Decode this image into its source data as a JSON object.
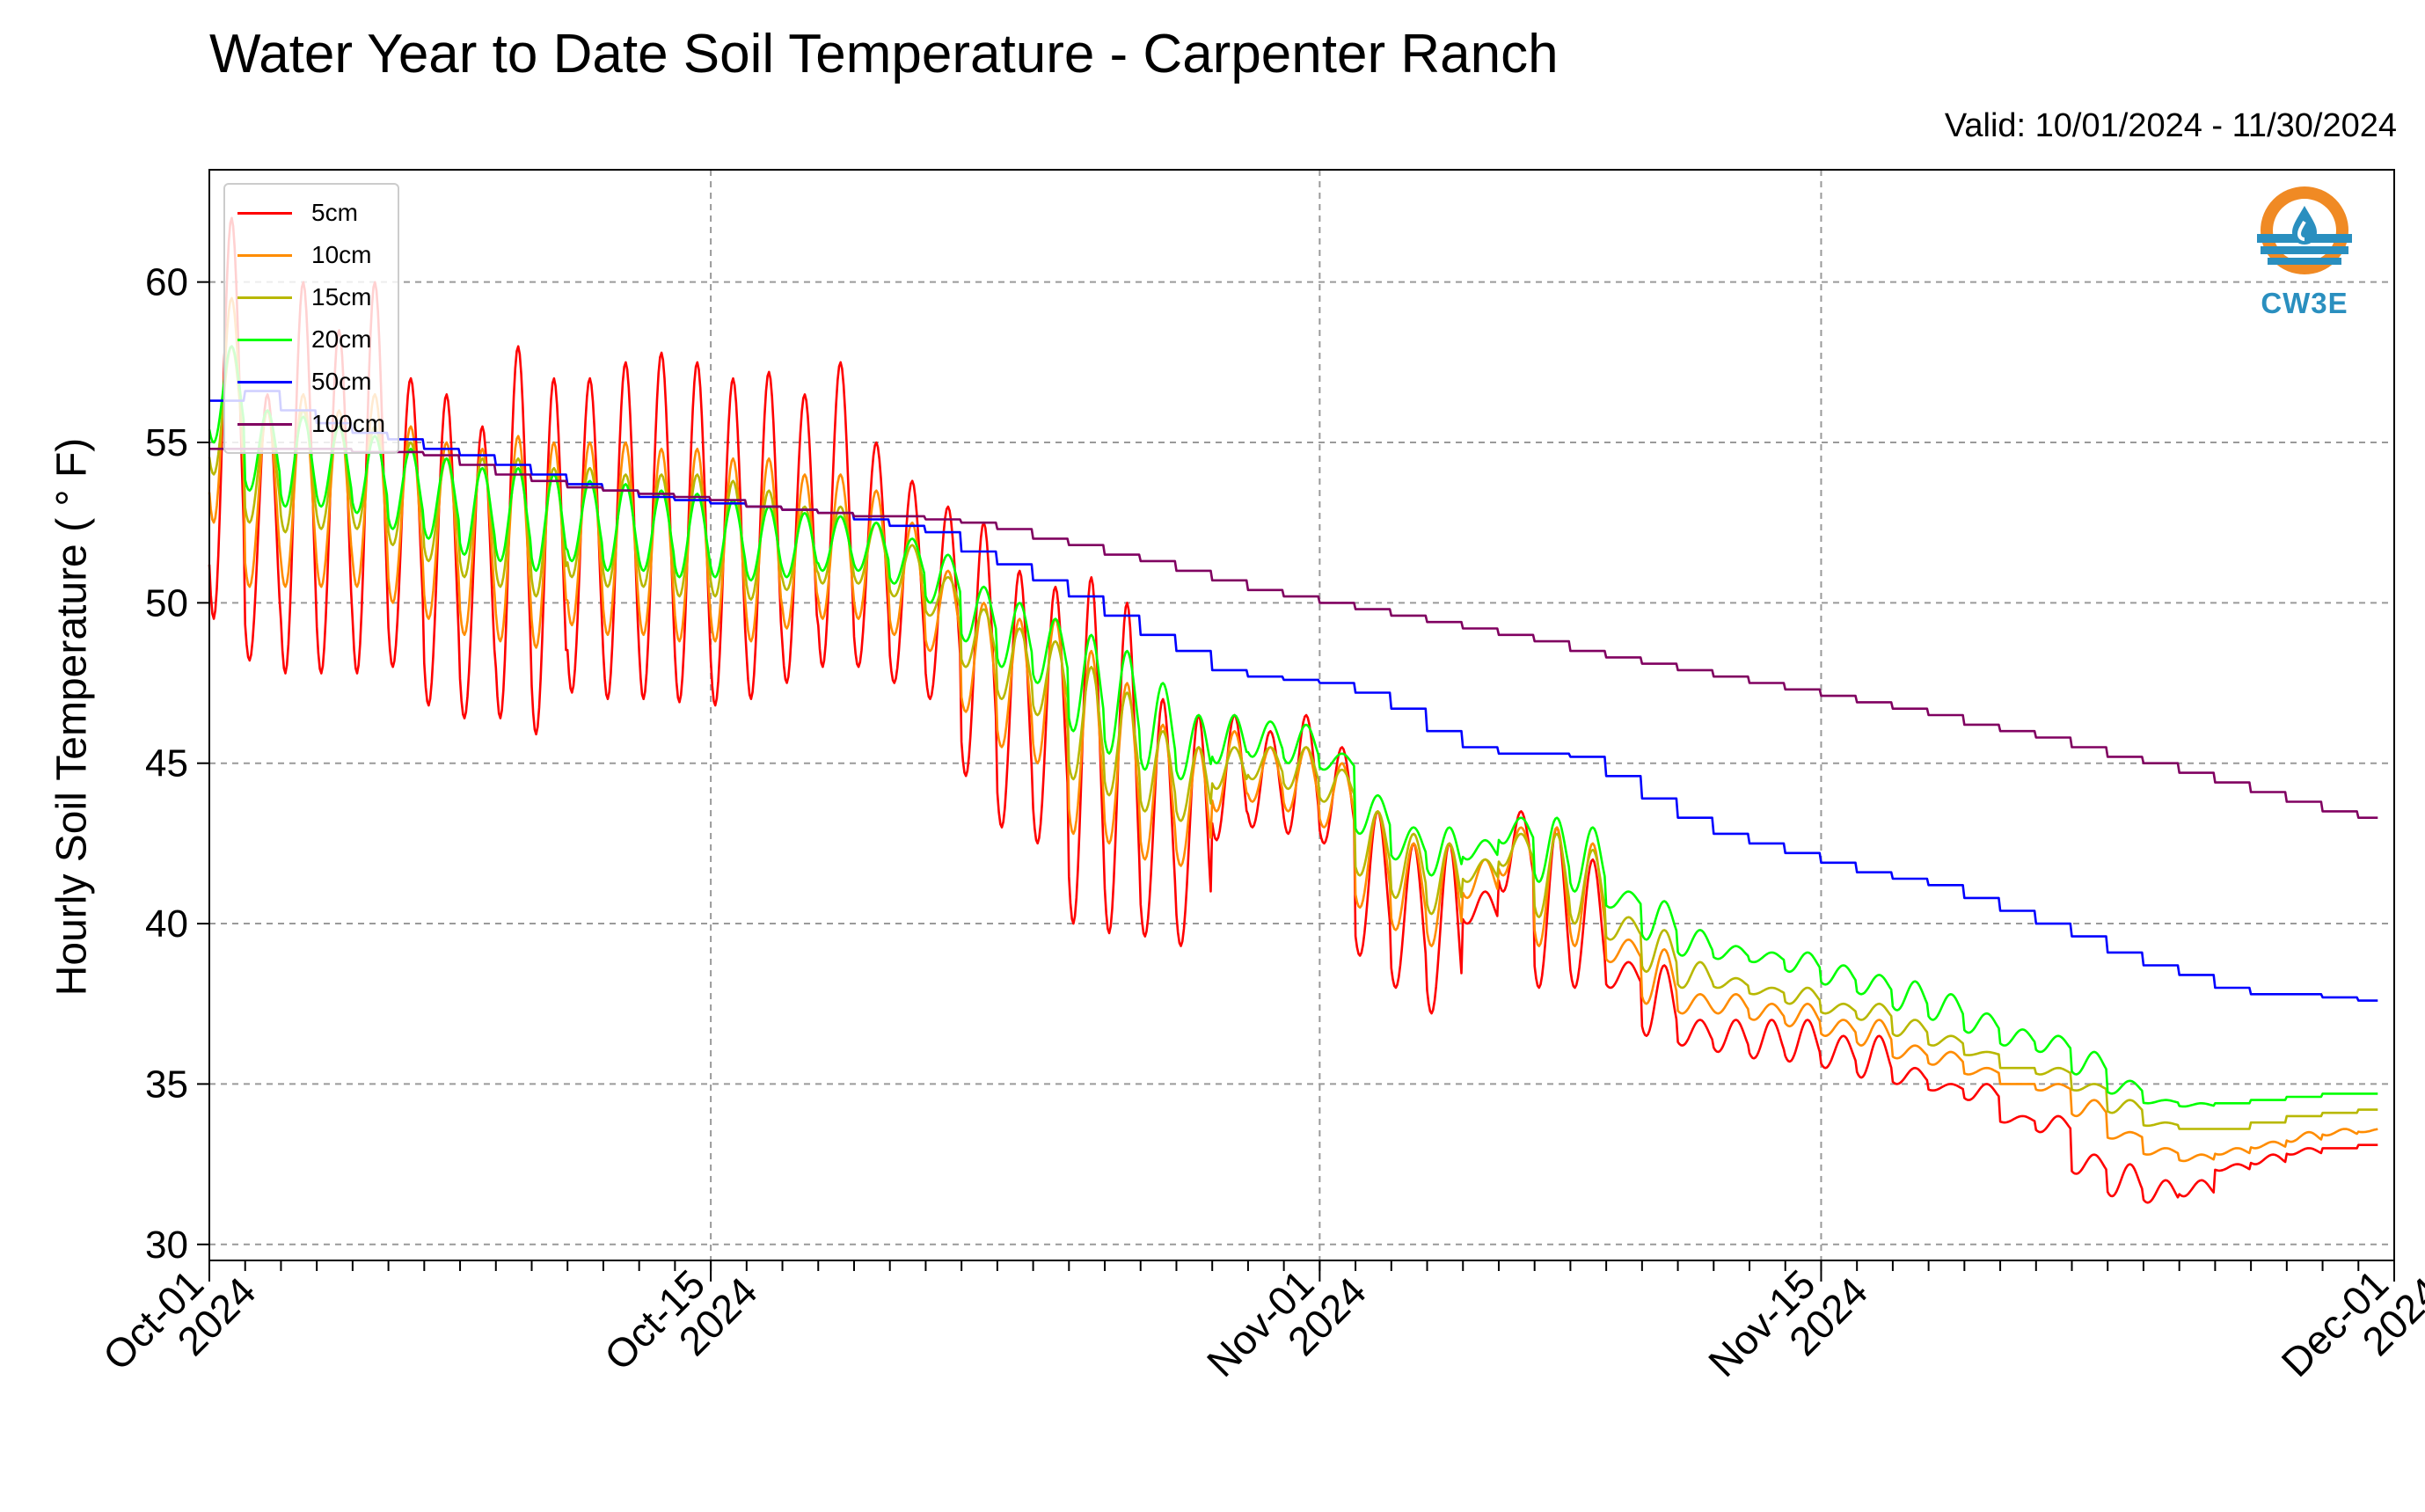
{
  "title": "Water Year to Date Soil Temperature - Carpenter Ranch",
  "subtitle": "Valid: 10/01/2024 - 11/30/2024",
  "logo_text": "CW3E",
  "chart_data": {
    "type": "line",
    "title": "Water Year to Date Soil Temperature - Carpenter Ranch",
    "ylabel": "Hourly Soil Temperature ( ° F)",
    "xlabel": "",
    "xlim": [
      "2024-10-01",
      "2024-12-01"
    ],
    "ylim": [
      29.5,
      63.5
    ],
    "yticks": [
      30,
      35,
      40,
      45,
      50,
      55,
      60
    ],
    "xticks": [
      {
        "date": "2024-10-01",
        "label1": "Oct-01",
        "label2": "2024"
      },
      {
        "date": "2024-10-15",
        "label1": "Oct-15",
        "label2": "2024"
      },
      {
        "date": "2024-11-01",
        "label1": "Nov-01",
        "label2": "2024"
      },
      {
        "date": "2024-11-15",
        "label1": "Nov-15",
        "label2": "2024"
      },
      {
        "date": "2024-12-01",
        "label1": "Dec-01",
        "label2": "2024"
      }
    ],
    "grid": true,
    "legend": "top-left",
    "series": [
      {
        "name": "5cm",
        "color": "#ff0000",
        "daily_max": [
          62.0,
          56.5,
          60.0,
          58.5,
          60.0,
          57.0,
          56.5,
          55.5,
          58.0,
          57.0,
          57.0,
          57.5,
          57.8,
          57.5,
          57.0,
          57.2,
          56.5,
          57.5,
          55.0,
          53.8,
          53.0,
          52.5,
          51.0,
          50.5,
          50.8,
          50.0,
          47.0,
          46.5,
          46.5,
          46.0,
          46.5,
          45.5,
          43.5,
          42.5,
          42.5,
          41.0,
          43.5,
          43.0,
          42.0,
          38.8,
          38.7,
          37.0,
          37.0,
          37.0,
          37.0,
          36.5,
          36.5,
          35.5,
          35.0,
          35.0,
          34.0,
          34.0,
          32.8,
          32.5,
          32.0,
          32.0,
          32.5,
          32.8,
          33.0,
          33.0,
          33.1
        ],
        "daily_min": [
          49.5,
          48.2,
          47.8,
          47.8,
          47.8,
          48.0,
          46.8,
          46.4,
          46.4,
          45.9,
          47.2,
          47.0,
          47.0,
          46.9,
          46.8,
          47.0,
          47.5,
          48.0,
          48.0,
          47.5,
          47.0,
          44.6,
          43.0,
          42.5,
          40.0,
          39.7,
          39.6,
          39.3,
          42.6,
          43.0,
          42.8,
          42.5,
          39.0,
          38.0,
          37.2,
          40.0,
          41.0,
          38.0,
          38.0,
          38.0,
          36.5,
          36.2,
          36.0,
          35.8,
          35.7,
          35.5,
          35.2,
          35.0,
          34.8,
          34.5,
          33.8,
          33.5,
          32.2,
          31.5,
          31.3,
          31.5,
          32.3,
          32.5,
          32.8,
          33.0,
          33.1
        ]
      },
      {
        "name": "10cm",
        "color": "#ff8c00",
        "daily_max": [
          59.5,
          56.0,
          56.5,
          56.0,
          56.5,
          55.5,
          55.0,
          54.8,
          55.2,
          55.0,
          55.0,
          55.0,
          54.8,
          54.8,
          54.5,
          54.5,
          54.0,
          54.0,
          53.5,
          52.5,
          51.0,
          50.0,
          49.5,
          49.5,
          48.5,
          47.5,
          46.2,
          45.5,
          46.0,
          45.5,
          45.5,
          45.0,
          43.5,
          42.5,
          42.5,
          42.0,
          43.0,
          43.0,
          42.5,
          39.5,
          39.2,
          37.8,
          37.8,
          37.5,
          37.5,
          37.0,
          37.0,
          36.2,
          36.0,
          35.5,
          35.0,
          35.0,
          34.5,
          33.5,
          33.0,
          32.8,
          33.0,
          33.2,
          33.5,
          33.6,
          33.6
        ],
        "daily_min": [
          52.5,
          50.5,
          50.5,
          50.5,
          50.5,
          50.0,
          49.5,
          49.0,
          48.8,
          48.6,
          49.3,
          49.0,
          49.0,
          48.8,
          48.8,
          48.8,
          49.2,
          49.5,
          49.5,
          49.0,
          48.5,
          46.6,
          45.5,
          45.0,
          42.8,
          42.5,
          42.0,
          41.8,
          43.5,
          43.8,
          43.5,
          43.0,
          40.5,
          39.8,
          39.3,
          40.8,
          41.5,
          39.3,
          39.3,
          38.8,
          37.5,
          37.2,
          37.2,
          37.0,
          36.8,
          36.5,
          36.2,
          35.8,
          35.6,
          35.3,
          35.0,
          34.8,
          34.0,
          33.3,
          32.8,
          32.6,
          32.8,
          33.0,
          33.2,
          33.4,
          33.5
        ]
      },
      {
        "name": "15cm",
        "color": "#b8b800",
        "daily_max": [
          58.0,
          56.0,
          56.0,
          55.5,
          55.5,
          55.0,
          54.5,
          54.5,
          54.5,
          54.2,
          54.2,
          54.0,
          54.0,
          54.0,
          53.8,
          53.5,
          53.0,
          53.0,
          52.5,
          51.8,
          50.8,
          49.8,
          49.2,
          48.8,
          48.0,
          47.2,
          46.0,
          45.5,
          45.5,
          45.5,
          45.5,
          44.8,
          43.5,
          42.8,
          42.5,
          42.0,
          42.8,
          42.8,
          42.3,
          40.2,
          39.8,
          38.8,
          38.3,
          38.0,
          38.0,
          37.5,
          37.5,
          37.0,
          36.5,
          36.0,
          35.5,
          35.5,
          35.0,
          34.5,
          33.8,
          33.6,
          33.6,
          33.8,
          34.0,
          34.1,
          34.2
        ],
        "daily_min": [
          54.0,
          52.5,
          52.2,
          52.3,
          52.3,
          51.8,
          51.3,
          50.8,
          50.5,
          50.2,
          50.8,
          50.5,
          50.5,
          50.2,
          50.2,
          50.1,
          50.4,
          50.6,
          50.6,
          50.2,
          49.6,
          48.0,
          47.0,
          46.5,
          44.5,
          44.0,
          43.5,
          43.2,
          44.2,
          44.5,
          44.2,
          43.8,
          41.5,
          40.8,
          40.3,
          41.3,
          41.8,
          40.2,
          40.0,
          39.5,
          38.5,
          38.0,
          38.0,
          37.8,
          37.5,
          37.2,
          37.0,
          36.5,
          36.2,
          35.9,
          35.5,
          35.3,
          34.8,
          34.1,
          33.7,
          33.6,
          33.6,
          33.8,
          34.0,
          34.1,
          34.2
        ]
      },
      {
        "name": "20cm",
        "color": "#00ff00",
        "daily_max": [
          58.0,
          56.0,
          55.8,
          55.5,
          55.2,
          54.8,
          54.5,
          54.2,
          54.2,
          54.0,
          53.8,
          53.7,
          53.5,
          53.4,
          53.2,
          53.0,
          52.8,
          52.7,
          52.5,
          52.0,
          51.5,
          50.5,
          50.0,
          49.5,
          49.0,
          48.5,
          47.5,
          46.5,
          46.5,
          46.3,
          46.2,
          45.3,
          44.0,
          43.0,
          43.0,
          42.6,
          43.3,
          43.3,
          43.0,
          41.0,
          40.7,
          39.8,
          39.3,
          39.1,
          39.1,
          38.7,
          38.4,
          38.2,
          37.8,
          37.2,
          36.7,
          36.5,
          36.0,
          35.1,
          34.5,
          34.4,
          34.4,
          34.5,
          34.6,
          34.7,
          34.7
        ],
        "daily_min": [
          55.0,
          53.5,
          53.0,
          53.0,
          52.8,
          52.3,
          52.0,
          51.5,
          51.3,
          51.0,
          51.3,
          51.0,
          51.0,
          50.8,
          50.8,
          50.7,
          50.8,
          51.0,
          51.0,
          50.6,
          50.0,
          48.8,
          48.0,
          47.5,
          46.0,
          45.3,
          44.8,
          44.5,
          45.0,
          45.2,
          45.0,
          44.8,
          42.8,
          42.0,
          41.5,
          42.0,
          42.5,
          41.3,
          41.0,
          40.5,
          39.5,
          39.0,
          38.9,
          38.8,
          38.5,
          38.1,
          37.8,
          37.3,
          37.0,
          36.6,
          36.2,
          36.0,
          35.3,
          34.7,
          34.4,
          34.3,
          34.4,
          34.5,
          34.6,
          34.7,
          34.7
        ]
      },
      {
        "name": "50cm",
        "color": "#0000ff",
        "daily_max": [
          56.3,
          56.6,
          56.0,
          55.6,
          55.3,
          55.1,
          54.8,
          54.6,
          54.3,
          54.0,
          53.7,
          53.5,
          53.3,
          53.2,
          53.1,
          53.0,
          52.9,
          52.8,
          52.6,
          52.4,
          52.2,
          51.6,
          51.2,
          50.7,
          50.2,
          49.6,
          49.0,
          48.5,
          47.9,
          47.7,
          47.6,
          47.5,
          47.2,
          46.7,
          46.0,
          45.5,
          45.3,
          45.3,
          45.2,
          44.6,
          43.9,
          43.3,
          42.8,
          42.5,
          42.2,
          41.9,
          41.6,
          41.4,
          41.2,
          40.8,
          40.4,
          40.0,
          39.6,
          39.1,
          38.7,
          38.4,
          38.0,
          37.8,
          37.8,
          37.7,
          37.6
        ],
        "daily_min": [
          56.3,
          56.6,
          56.0,
          55.6,
          55.3,
          55.1,
          54.8,
          54.6,
          54.3,
          54.0,
          53.7,
          53.5,
          53.3,
          53.2,
          53.1,
          53.0,
          52.9,
          52.8,
          52.6,
          52.4,
          52.2,
          51.6,
          51.2,
          50.7,
          50.2,
          49.6,
          49.0,
          48.5,
          47.9,
          47.7,
          47.6,
          47.5,
          47.2,
          46.7,
          46.0,
          45.5,
          45.3,
          45.3,
          45.2,
          44.6,
          43.9,
          43.3,
          42.8,
          42.5,
          42.2,
          41.9,
          41.6,
          41.4,
          41.2,
          40.8,
          40.4,
          40.0,
          39.6,
          39.1,
          38.7,
          38.4,
          38.0,
          37.8,
          37.8,
          37.7,
          37.6
        ]
      },
      {
        "name": "100cm",
        "color": "#800060",
        "daily_max": [
          54.8,
          54.8,
          54.8,
          54.8,
          54.7,
          54.7,
          54.6,
          54.3,
          54.0,
          53.8,
          53.6,
          53.5,
          53.4,
          53.3,
          53.2,
          53.0,
          52.9,
          52.8,
          52.7,
          52.7,
          52.6,
          52.5,
          52.3,
          52.0,
          51.8,
          51.5,
          51.3,
          51.0,
          50.7,
          50.4,
          50.2,
          50.0,
          49.8,
          49.6,
          49.4,
          49.2,
          49.0,
          48.8,
          48.5,
          48.3,
          48.1,
          47.9,
          47.7,
          47.5,
          47.3,
          47.1,
          46.9,
          46.7,
          46.5,
          46.2,
          46.0,
          45.8,
          45.5,
          45.2,
          45.0,
          44.7,
          44.4,
          44.1,
          43.8,
          43.5,
          43.3
        ],
        "daily_min": [
          54.8,
          54.8,
          54.8,
          54.8,
          54.7,
          54.7,
          54.6,
          54.3,
          54.0,
          53.8,
          53.6,
          53.5,
          53.4,
          53.3,
          53.2,
          53.0,
          52.9,
          52.8,
          52.7,
          52.7,
          52.6,
          52.5,
          52.3,
          52.0,
          51.8,
          51.5,
          51.3,
          51.0,
          50.7,
          50.4,
          50.2,
          50.0,
          49.8,
          49.6,
          49.4,
          49.2,
          49.0,
          48.8,
          48.5,
          48.3,
          48.1,
          47.9,
          47.7,
          47.5,
          47.3,
          47.1,
          46.9,
          46.7,
          46.5,
          46.2,
          46.0,
          45.8,
          45.5,
          45.2,
          45.0,
          44.7,
          44.4,
          44.1,
          43.8,
          43.5,
          43.3
        ]
      }
    ]
  }
}
